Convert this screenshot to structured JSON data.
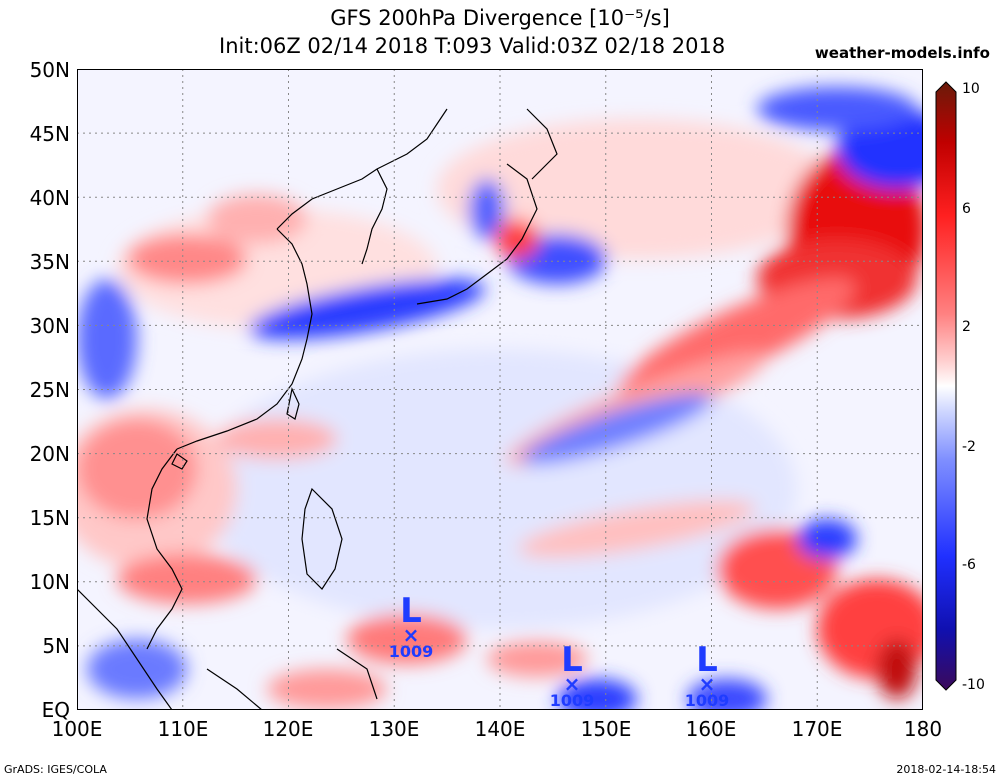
{
  "title": {
    "line1": "GFS 200hPa Divergence [10⁻⁵/s]",
    "line2": "Init:06Z 02/14 2018 T:093 Valid:03Z 02/18 2018",
    "site": "weather-models.info"
  },
  "lat_labels": [
    "50N",
    "45N",
    "40N",
    "35N",
    "30N",
    "25N",
    "20N",
    "15N",
    "10N",
    "5N",
    "EQ"
  ],
  "lon_labels": [
    "100E",
    "110E",
    "120E",
    "130E",
    "140E",
    "150E",
    "160E",
    "170E",
    "180"
  ],
  "colorbar": {
    "ticks": [
      "10",
      "6",
      "2",
      "-2",
      "-6",
      "-10"
    ],
    "colors": [
      "#6a1b0a",
      "#c00000",
      "#ff2020",
      "#ff8080",
      "#ffd0d0",
      "#ffffff",
      "#d0d8ff",
      "#8090ff",
      "#2030ff",
      "#1010b0",
      "#3b0a5a"
    ]
  },
  "lows": [
    {
      "label": "L",
      "marker": "×",
      "pressure": "1009",
      "lon": 132,
      "lat": 5.3
    },
    {
      "label": "L",
      "marker": "×",
      "pressure": "1009",
      "lon": 146.8,
      "lat": 1.6
    },
    {
      "label": "L",
      "marker": "×",
      "pressure": "1009",
      "lon": 159.5,
      "lat": 1.6
    }
  ],
  "footer": {
    "credit": "GrADS: IGES/COLA",
    "timestamp": "2018-02-14-18:54"
  }
}
